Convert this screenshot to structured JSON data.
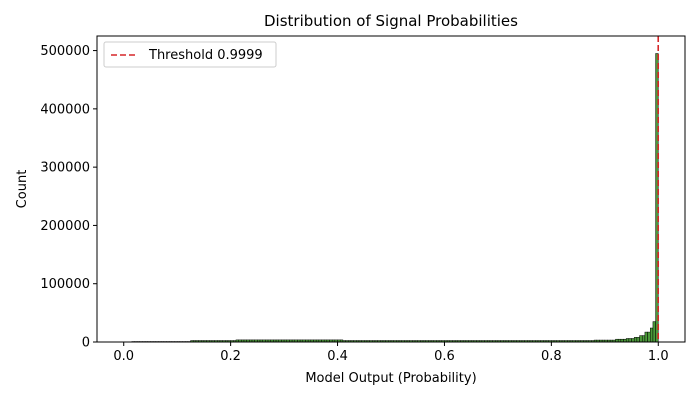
{
  "chart_data": {
    "type": "bar",
    "title": "Distribution of Signal Probabilities",
    "xlabel": "Model Output (Probability)",
    "ylabel": "Count",
    "xlim": [
      -0.05,
      1.05
    ],
    "ylim": [
      0,
      525000
    ],
    "xticks": [
      0.0,
      0.2,
      0.4,
      0.6,
      0.8,
      1.0
    ],
    "xtick_labels": [
      "0.0",
      "0.2",
      "0.4",
      "0.6",
      "0.8",
      "1.0"
    ],
    "yticks": [
      0,
      100000,
      200000,
      300000,
      400000,
      500000
    ],
    "ytick_labels": [
      "0",
      "100000",
      "200000",
      "300000",
      "400000",
      "500000"
    ],
    "bin_width": 0.005,
    "bins": [
      {
        "from": 0.015,
        "to": 0.125,
        "count": 800
      },
      {
        "from": 0.125,
        "to": 0.21,
        "count": 2500
      },
      {
        "from": 0.21,
        "to": 0.41,
        "count": 3600
      },
      {
        "from": 0.41,
        "to": 0.88,
        "count": 2500
      },
      {
        "from": 0.88,
        "to": 0.92,
        "count": 3300
      },
      {
        "from": 0.92,
        "to": 0.94,
        "count": 4800
      },
      {
        "from": 0.94,
        "to": 0.955,
        "count": 6000
      },
      {
        "from": 0.955,
        "to": 0.965,
        "count": 8000
      },
      {
        "from": 0.965,
        "to": 0.975,
        "count": 11000
      },
      {
        "from": 0.975,
        "to": 0.985,
        "count": 17000
      },
      {
        "from": 0.985,
        "to": 0.99,
        "count": 24000
      },
      {
        "from": 0.99,
        "to": 0.995,
        "count": 35000
      },
      {
        "from": 0.995,
        "to": 1.0,
        "count": 495000
      }
    ],
    "bar_color": "#4c9a3a",
    "bar_edge_color": "#000000",
    "threshold": {
      "value": 0.9999,
      "label": "Threshold 0.9999",
      "color": "#d62728"
    },
    "legend_position": "top-left",
    "grid": false
  }
}
